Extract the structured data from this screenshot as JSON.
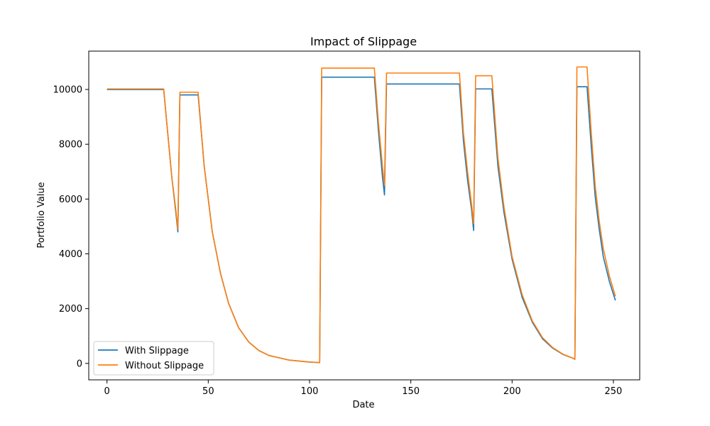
{
  "chart_data": {
    "type": "line",
    "title": "Impact of Slippage",
    "xlabel": "Date",
    "ylabel": "Portfolio Value",
    "xlim": [
      -9,
      263
    ],
    "ylim": [
      -600,
      11400
    ],
    "xticks": [
      0,
      50,
      100,
      150,
      200,
      250
    ],
    "yticks": [
      0,
      2000,
      4000,
      6000,
      8000,
      10000
    ],
    "grid": false,
    "legend_position": "lower-left",
    "series": [
      {
        "name": "With Slippage",
        "color": "#1f77b4",
        "x": [
          0,
          28,
          30,
          32,
          34,
          35,
          36,
          40,
          45,
          48,
          52,
          56,
          60,
          65,
          70,
          75,
          80,
          90,
          100,
          105,
          106,
          132,
          134,
          136,
          137,
          138,
          150,
          174,
          176,
          178,
          180,
          181,
          182,
          190,
          193,
          196,
          200,
          205,
          210,
          215,
          220,
          225,
          230,
          231,
          232,
          237,
          239,
          241,
          243,
          245,
          248,
          251
        ],
        "y": [
          10000,
          10000,
          8400,
          6800,
          5500,
          4800,
          9800,
          9800,
          9800,
          7200,
          4800,
          3300,
          2200,
          1300,
          780,
          470,
          290,
          120,
          50,
          30,
          10450,
          10450,
          8500,
          6800,
          6150,
          10200,
          10200,
          10200,
          8100,
          6700,
          5600,
          4850,
          10020,
          10020,
          7200,
          5500,
          3800,
          2400,
          1500,
          900,
          560,
          330,
          190,
          150,
          10100,
          10100,
          8000,
          6100,
          4900,
          3900,
          3000,
          2300
        ]
      },
      {
        "name": "Without Slippage",
        "color": "#ff7f0e",
        "x": [
          0,
          28,
          30,
          32,
          34,
          35,
          36,
          40,
          45,
          48,
          52,
          56,
          60,
          65,
          70,
          75,
          80,
          90,
          100,
          105,
          106,
          132,
          134,
          136,
          137,
          138,
          150,
          174,
          176,
          178,
          180,
          181,
          182,
          190,
          193,
          196,
          200,
          205,
          210,
          215,
          220,
          225,
          230,
          231,
          232,
          237,
          239,
          241,
          243,
          245,
          248,
          251
        ],
        "y": [
          10020,
          10020,
          8400,
          6800,
          5600,
          4900,
          9900,
          9900,
          9900,
          7200,
          4800,
          3300,
          2200,
          1300,
          780,
          470,
          290,
          120,
          50,
          30,
          10780,
          10780,
          8800,
          7200,
          6500,
          10600,
          10600,
          10600,
          8400,
          7000,
          5800,
          5100,
          10500,
          10500,
          7500,
          5700,
          3900,
          2500,
          1550,
          940,
          580,
          340,
          195,
          150,
          10820,
          10820,
          8500,
          6500,
          5200,
          4200,
          3200,
          2450
        ]
      }
    ]
  }
}
